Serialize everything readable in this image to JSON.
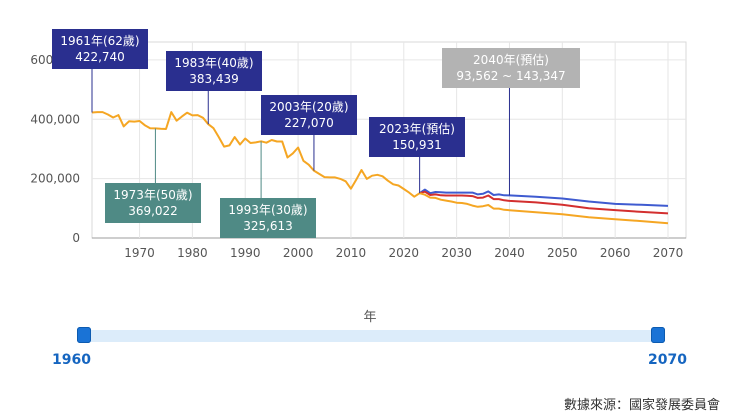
{
  "chart_data": {
    "type": "line",
    "xlabel": "年",
    "ylim": [
      0,
      640000
    ],
    "xlim": [
      1960,
      2070
    ],
    "grid": true,
    "y_ticks": [
      "0",
      "200,000",
      "400,000",
      "600,000"
    ],
    "x_ticks": [
      "1970",
      "1980",
      "1990",
      "2000",
      "2010",
      "2020",
      "2030",
      "2040",
      "2050",
      "2060",
      "2070"
    ],
    "series": [
      {
        "color": "#f5a623",
        "x": [
          1961,
          1962,
          1963,
          1964,
          1965,
          1966,
          1967,
          1968,
          1969,
          1970,
          1971,
          1972,
          1973,
          1974,
          1975,
          1976,
          1977,
          1978,
          1979,
          1980,
          1981,
          1982,
          1983,
          1984,
          1985,
          1986,
          1987,
          1988,
          1989,
          1990,
          1991,
          1992,
          1993,
          1994,
          1995,
          1996,
          1997,
          1998,
          1999,
          2000,
          2001,
          2002,
          2003,
          2004,
          2005,
          2006,
          2007,
          2008,
          2009,
          2010,
          2011,
          2012,
          2013,
          2014,
          2015,
          2016,
          2017,
          2018,
          2019,
          2020,
          2021,
          2022,
          2023
        ],
        "values": [
          422740,
          424000,
          424000,
          416000,
          406000,
          414000,
          376000,
          393000,
          392000,
          394000,
          380000,
          370000,
          369022,
          368000,
          367000,
          424000,
          395000,
          409000,
          422000,
          413000,
          414000,
          405000,
          383439,
          370000,
          340000,
          308000,
          312000,
          340000,
          315000,
          335000,
          320000,
          322000,
          325613,
          321000,
          330000,
          325000,
          325000,
          271000,
          285000,
          305000,
          260000,
          247000,
          227070,
          216000,
          205000,
          204000,
          204000,
          199000,
          191000,
          166000,
          196000,
          229000,
          199000,
          210000,
          213000,
          208000,
          193000,
          181000,
          177000,
          165000,
          153000,
          139000,
          150931
        ]
      },
      {
        "color": "#3f5bd0",
        "x": [
          2023,
          2024,
          2025,
          2026,
          2027,
          2028,
          2029,
          2030,
          2031,
          2032,
          2033,
          2034,
          2035,
          2036,
          2037,
          2038,
          2039,
          2040,
          2045,
          2050,
          2055,
          2060,
          2065,
          2070
        ],
        "values": [
          150931,
          163000,
          151000,
          155000,
          154000,
          153000,
          153000,
          153000,
          153000,
          153000,
          153000,
          147000,
          149000,
          157000,
          145000,
          147000,
          144000,
          143347,
          139000,
          133000,
          123000,
          115000,
          112000,
          108000
        ]
      },
      {
        "color": "#d32f2f",
        "x": [
          2023,
          2024,
          2025,
          2026,
          2027,
          2028,
          2029,
          2030,
          2031,
          2032,
          2033,
          2034,
          2035,
          2036,
          2037,
          2038,
          2039,
          2040,
          2045,
          2050,
          2055,
          2060,
          2065,
          2070
        ],
        "values": [
          150931,
          156000,
          145000,
          147000,
          144000,
          143000,
          143000,
          143000,
          143000,
          142000,
          141000,
          135000,
          136000,
          143000,
          131000,
          131000,
          127000,
          125000,
          120000,
          112000,
          100000,
          94000,
          88000,
          83000
        ]
      },
      {
        "color": "#f5a623",
        "x": [
          2023,
          2024,
          2025,
          2026,
          2027,
          2028,
          2029,
          2030,
          2031,
          2032,
          2033,
          2034,
          2035,
          2036,
          2037,
          2038,
          2039,
          2040,
          2045,
          2050,
          2055,
          2060,
          2065,
          2070
        ],
        "values": [
          150931,
          146000,
          136000,
          135000,
          129000,
          126000,
          123000,
          119000,
          118000,
          115000,
          109000,
          105000,
          107000,
          111000,
          99000,
          99000,
          95000,
          93562,
          87000,
          80000,
          70000,
          63000,
          57000,
          50000
        ]
      }
    ],
    "annotations": [
      {
        "label": "1961年(62歲)",
        "value": "422,740",
        "color": "#2a2f8f",
        "x": 1961,
        "y": 422740,
        "side": "above"
      },
      {
        "label": "1973年(50歲)",
        "value": "369,022",
        "color": "#4f8a85",
        "x": 1973,
        "y": 369022,
        "side": "below"
      },
      {
        "label": "1983年(40歲)",
        "value": "383,439",
        "color": "#2a2f8f",
        "x": 1983,
        "y": 383439,
        "side": "above"
      },
      {
        "label": "1993年(30歲)",
        "value": "325,613",
        "color": "#4f8a85",
        "x": 1993,
        "y": 325613,
        "side": "below"
      },
      {
        "label": "2003年(20歲)",
        "value": "227,070",
        "color": "#2a2f8f",
        "x": 2003,
        "y": 227070,
        "side": "above"
      },
      {
        "label": "2023年(預估)",
        "value": "150,931",
        "color": "#2a2f8f",
        "x": 2023,
        "y": 150931,
        "side": "above"
      },
      {
        "label": "2040年(預估)",
        "value": "93,562 ~ 143,347",
        "color": "#b3b3b3",
        "x": 2040,
        "y": 143347,
        "side": "above"
      }
    ]
  },
  "slider": {
    "start_label": "1960",
    "end_label": "2070"
  },
  "source": "數據來源：國家發展委員會"
}
